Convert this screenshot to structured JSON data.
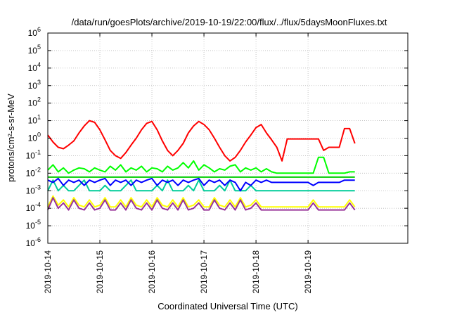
{
  "chart_data": {
    "type": "line",
    "title": "/data/run/goesPlots/archive/2019-10-19/22:00/flux/../flux/5daysMoonFluxes.txt",
    "xlabel": "Coordinated Universal Time (UTC)",
    "ylabel": "protons/cm²-s-sr-MeV",
    "yscale": "log",
    "ylim": [
      1e-06,
      1000000.0
    ],
    "xlim": [
      "2019-10-14",
      "2019-10-20 22:00"
    ],
    "x_ticks": [
      "2019-10-14",
      "2019-10-15",
      "2019-10-16",
      "2019-10-17",
      "2019-10-18",
      "2019-10-19"
    ],
    "y_ticks": [
      {
        "base": "10",
        "exp": "-6"
      },
      {
        "base": "10",
        "exp": "-5"
      },
      {
        "base": "10",
        "exp": "-4"
      },
      {
        "base": "10",
        "exp": "-3"
      },
      {
        "base": "10",
        "exp": "-2"
      },
      {
        "base": "10",
        "exp": "-1"
      },
      {
        "base": "10",
        "exp": "0"
      },
      {
        "base": "10",
        "exp": "1"
      },
      {
        "base": "10",
        "exp": "2"
      },
      {
        "base": "10",
        "exp": "3"
      },
      {
        "base": "10",
        "exp": "4"
      },
      {
        "base": "10",
        "exp": "5"
      },
      {
        "base": "10",
        "exp": "6"
      }
    ],
    "grid": true,
    "legend": "none",
    "x_days": [
      0,
      0.1,
      0.2,
      0.3,
      0.4,
      0.5,
      0.6,
      0.7,
      0.8,
      0.9,
      1.0,
      1.1,
      1.2,
      1.3,
      1.4,
      1.5,
      1.6,
      1.7,
      1.8,
      1.9,
      2.0,
      2.1,
      2.2,
      2.3,
      2.4,
      2.5,
      2.6,
      2.7,
      2.8,
      2.9,
      3.0,
      3.1,
      3.2,
      3.3,
      3.4,
      3.5,
      3.6,
      3.7,
      3.8,
      3.9,
      4.0,
      4.1,
      4.2,
      4.3,
      4.4,
      4.5,
      4.6,
      4.7,
      4.8,
      4.9,
      5.0,
      5.1,
      5.2,
      5.3,
      5.4,
      5.5,
      5.6,
      5.7,
      5.8,
      5.9
    ],
    "series": [
      {
        "color": "#ff0000",
        "values": [
          1.5,
          0.6,
          0.3,
          0.25,
          0.4,
          0.7,
          2,
          5,
          10,
          8,
          3,
          0.8,
          0.2,
          0.1,
          0.07,
          0.15,
          0.4,
          1,
          3,
          7,
          9,
          3,
          0.7,
          0.2,
          0.1,
          0.2,
          0.5,
          2,
          5,
          9,
          6,
          3,
          1,
          0.3,
          0.1,
          0.05,
          0.08,
          0.2,
          0.6,
          1.5,
          4,
          6,
          2,
          0.8,
          0.3,
          0.05,
          0.9,
          0.9,
          0.9,
          0.9,
          0.9,
          0.9,
          0.9,
          0.2,
          0.3,
          0.3,
          0.3,
          3.5,
          3.5,
          0.5
        ]
      },
      {
        "color": "#00ff00",
        "values": [
          0.015,
          0.03,
          0.012,
          0.02,
          0.01,
          0.015,
          0.02,
          0.018,
          0.012,
          0.02,
          0.015,
          0.012,
          0.025,
          0.015,
          0.03,
          0.012,
          0.02,
          0.015,
          0.025,
          0.012,
          0.02,
          0.018,
          0.012,
          0.025,
          0.015,
          0.02,
          0.04,
          0.02,
          0.05,
          0.015,
          0.03,
          0.02,
          0.012,
          0.018,
          0.015,
          0.025,
          0.03,
          0.012,
          0.02,
          0.015,
          0.02,
          0.012,
          0.018,
          0.012,
          0.01,
          0.01,
          0.01,
          0.01,
          0.01,
          0.01,
          0.01,
          0.01,
          0.08,
          0.08,
          0.01,
          0.01,
          0.01,
          0.01,
          0.012,
          0.012
        ]
      },
      {
        "color": "#00cc99",
        "values": [
          0.001,
          0.004,
          0.001,
          0.002,
          0.001,
          0.001,
          0.002,
          0.004,
          0.001,
          0.001,
          0.001,
          0.002,
          0.001,
          0.001,
          0.001,
          0.002,
          0.004,
          0.001,
          0.001,
          0.001,
          0.001,
          0.002,
          0.001,
          0.004,
          0.001,
          0.001,
          0.001,
          0.002,
          0.001,
          0.004,
          0.001,
          0.001,
          0.001,
          0.002,
          0.001,
          0.004,
          0.001,
          0.001,
          0.001,
          0.002,
          0.001,
          0.001,
          0.001,
          0.001,
          0.001,
          0.001,
          0.001,
          0.001,
          0.001,
          0.001,
          0.001,
          0.001,
          0.001,
          0.001,
          0.001,
          0.001,
          0.001,
          0.001,
          0.001,
          0.001
        ]
      },
      {
        "color": "#00cc00",
        "values": [
          0.006,
          0.006,
          0.006,
          0.006,
          0.006,
          0.006,
          0.006,
          0.006,
          0.006,
          0.006,
          0.006,
          0.006,
          0.006,
          0.006,
          0.006,
          0.006,
          0.006,
          0.006,
          0.006,
          0.006,
          0.006,
          0.006,
          0.006,
          0.006,
          0.006,
          0.006,
          0.006,
          0.006,
          0.006,
          0.006,
          0.006,
          0.006,
          0.006,
          0.006,
          0.006,
          0.006,
          0.006,
          0.006,
          0.006,
          0.006,
          0.006,
          0.006,
          0.006,
          0.006,
          0.006,
          0.006,
          0.006,
          0.006,
          0.006,
          0.006,
          0.006,
          0.006,
          0.006,
          0.006,
          0.006,
          0.006,
          0.006,
          0.006,
          0.006,
          0.006
        ]
      },
      {
        "color": "#0000ff",
        "values": [
          0.004,
          0.003,
          0.005,
          0.002,
          0.004,
          0.003,
          0.004,
          0.002,
          0.004,
          0.003,
          0.004,
          0.005,
          0.002,
          0.004,
          0.003,
          0.004,
          0.002,
          0.004,
          0.003,
          0.004,
          0.005,
          0.002,
          0.004,
          0.003,
          0.004,
          0.002,
          0.004,
          0.003,
          0.004,
          0.005,
          0.002,
          0.004,
          0.003,
          0.004,
          0.002,
          0.004,
          0.003,
          0.001,
          0.003,
          0.002,
          0.004,
          0.003,
          0.004,
          0.003,
          0.003,
          0.003,
          0.003,
          0.003,
          0.003,
          0.003,
          0.003,
          0.002,
          0.003,
          0.003,
          0.003,
          0.003,
          0.003,
          0.004,
          0.004,
          0.004
        ]
      },
      {
        "color": "#ffff00",
        "values": [
          0.00012,
          0.0005,
          0.00015,
          0.0003,
          0.00012,
          0.0004,
          0.00015,
          0.00012,
          0.0003,
          0.00012,
          0.00015,
          0.0004,
          0.00012,
          0.00012,
          0.0003,
          0.00012,
          0.0004,
          0.00015,
          0.00012,
          0.0003,
          0.00012,
          0.0004,
          0.00015,
          0.00012,
          0.0003,
          0.00012,
          0.0004,
          0.00012,
          0.00015,
          0.0003,
          0.00012,
          0.00012,
          0.0004,
          0.00015,
          0.00012,
          0.0003,
          0.00012,
          0.0004,
          0.00012,
          0.00015,
          0.0003,
          0.00012,
          0.00012,
          0.00012,
          0.00012,
          0.00012,
          0.00012,
          0.00012,
          0.00012,
          0.00012,
          0.00012,
          0.0003,
          0.00012,
          0.00012,
          0.00012,
          0.00012,
          0.00012,
          0.00012,
          0.0003,
          0.00012
        ]
      },
      {
        "color": "#993399",
        "values": [
          8e-05,
          0.0004,
          0.0001,
          0.0002,
          8e-05,
          0.0003,
          0.0001,
          8e-05,
          0.0002,
          8e-05,
          0.0001,
          0.0003,
          8e-05,
          8e-05,
          0.0002,
          8e-05,
          0.0003,
          0.0001,
          8e-05,
          0.0002,
          8e-05,
          0.0003,
          0.0001,
          8e-05,
          0.0002,
          8e-05,
          0.0003,
          8e-05,
          0.0001,
          0.0002,
          8e-05,
          8e-05,
          0.0003,
          0.0001,
          8e-05,
          0.0002,
          8e-05,
          0.0003,
          8e-05,
          0.0001,
          0.0002,
          8e-05,
          8e-05,
          8e-05,
          8e-05,
          8e-05,
          8e-05,
          8e-05,
          8e-05,
          8e-05,
          8e-05,
          0.0002,
          8e-05,
          8e-05,
          8e-05,
          8e-05,
          8e-05,
          8e-05,
          0.0002,
          8e-05
        ]
      }
    ]
  }
}
